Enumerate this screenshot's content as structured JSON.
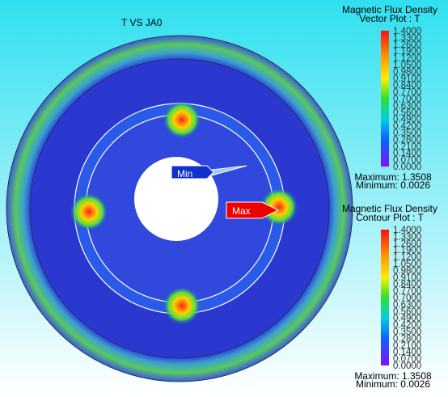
{
  "view": {
    "title": "T VS JA0",
    "min_label": "Min",
    "max_label": "Max"
  },
  "legends": [
    {
      "title": "Magnetic Flux Density",
      "subtitle": "Vector Plot : T",
      "ticks": [
        "1.4000",
        "1.3300",
        "1.2600",
        "1.1900",
        "1.1200",
        "1.0500",
        "0.9800",
        "0.9100",
        "0.8400",
        "0.7700",
        "0.7000",
        "0.6300",
        "0.5600",
        "0.4900",
        "0.4200",
        "0.3500",
        "0.2800",
        "0.2100",
        "0.1400",
        "0.0700",
        "0.0000"
      ],
      "maximum": "Maximum: 1.3508",
      "minimum": "Minimum: 0.0026"
    },
    {
      "title": "Magnetic Flux Density",
      "subtitle": "Contour Plot : T",
      "ticks": [
        "1.4000",
        "1.3300",
        "1.2600",
        "1.1900",
        "1.1200",
        "1.0500",
        "0.9800",
        "0.9100",
        "0.8400",
        "0.7700",
        "0.7000",
        "0.6300",
        "0.5600",
        "0.4900",
        "0.4200",
        "0.3500",
        "0.2800",
        "0.2100",
        "0.1400",
        "0.0700",
        "0.0000"
      ],
      "maximum": "Maximum: 1.3508",
      "minimum": "Minimum: 0.0026"
    }
  ]
}
